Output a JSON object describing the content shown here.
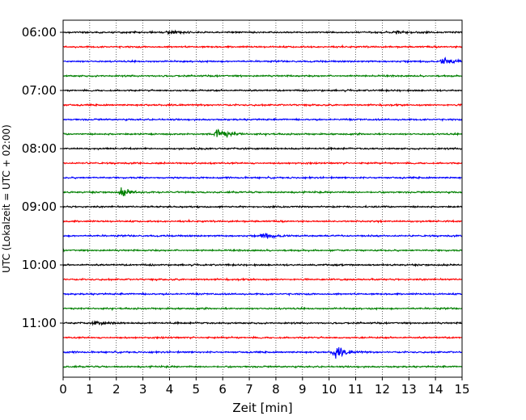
{
  "chart_data": {
    "type": "line",
    "title": "",
    "xlabel": "Zeit  [min]",
    "ylabel": "UTC (Lokalzeit = UTC + 02:00)",
    "xlim": [
      0,
      15
    ],
    "x_ticks": [
      "0",
      "1",
      "2",
      "3",
      "4",
      "5",
      "6",
      "7",
      "8",
      "9",
      "10",
      "11",
      "12",
      "13",
      "14",
      "15"
    ],
    "y_tick_labels": [
      "06:00",
      "07:00",
      "08:00",
      "09:00",
      "10:00",
      "11:00"
    ],
    "grid": "vertical dotted",
    "trace_interval_minutes": 15,
    "start_time": "06:00",
    "end_time": "11:45",
    "trace_colors": [
      "#000000",
      "#ff0000",
      "#0000ff",
      "#008000"
    ],
    "traces": [
      {
        "time": "06:00",
        "events": [
          {
            "x": 4.0,
            "amp": 0.4
          },
          {
            "x": 12.6,
            "amp": 0.4
          }
        ]
      },
      {
        "time": "06:15",
        "events": []
      },
      {
        "time": "06:30",
        "events": [
          {
            "x": 14.3,
            "amp": 0.9
          }
        ]
      },
      {
        "time": "06:45",
        "events": []
      },
      {
        "time": "07:00",
        "events": []
      },
      {
        "time": "07:15",
        "events": []
      },
      {
        "time": "07:30",
        "events": []
      },
      {
        "time": "07:45",
        "events": [
          {
            "x": 5.8,
            "amp": 1.3
          }
        ]
      },
      {
        "time": "08:00",
        "events": []
      },
      {
        "time": "08:15",
        "events": []
      },
      {
        "time": "08:30",
        "events": []
      },
      {
        "time": "08:45",
        "events": [
          {
            "x": 2.2,
            "amp": 0.9
          }
        ]
      },
      {
        "time": "09:00",
        "events": []
      },
      {
        "time": "09:15",
        "events": []
      },
      {
        "time": "09:30",
        "events": [
          {
            "x": 7.5,
            "amp": 0.7
          }
        ]
      },
      {
        "time": "09:45",
        "events": []
      },
      {
        "time": "10:00",
        "events": []
      },
      {
        "time": "10:15",
        "events": []
      },
      {
        "time": "10:30",
        "events": []
      },
      {
        "time": "10:45",
        "events": []
      },
      {
        "time": "11:00",
        "events": [
          {
            "x": 1.2,
            "amp": 0.4
          }
        ]
      },
      {
        "time": "11:15",
        "events": []
      },
      {
        "time": "11:30",
        "events": [
          {
            "x": 10.2,
            "amp": 1.4
          }
        ]
      },
      {
        "time": "11:45",
        "events": []
      }
    ]
  }
}
